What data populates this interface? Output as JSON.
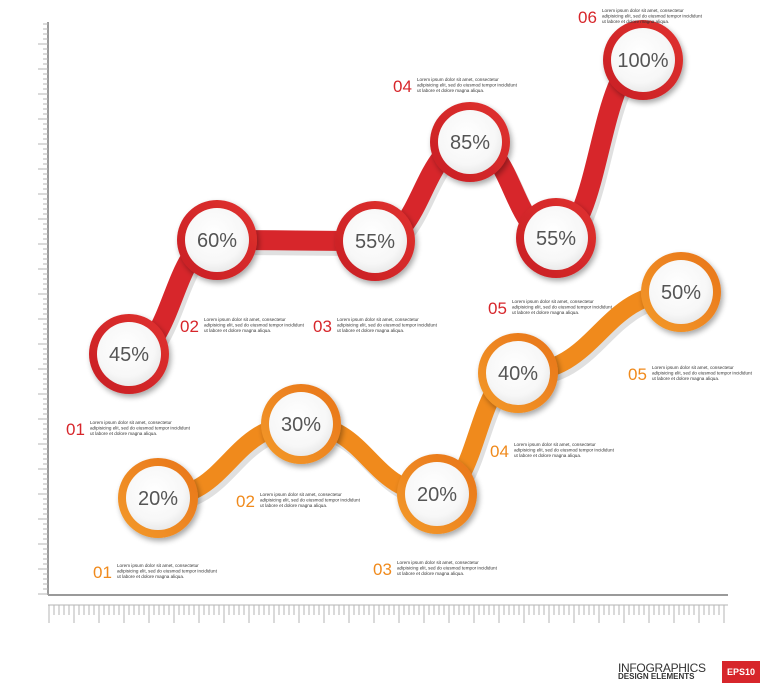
{
  "chart_data": [
    {
      "type": "line",
      "color": "#d7262b",
      "points": [
        {
          "step": "01",
          "value": "45%",
          "note": [
            "Lorem ipsum dolor sit amet, consectetur",
            "adipisicing elit, sed do eiusmod tempor incididunt",
            "ut labore et dolore magna aliqua."
          ]
        },
        {
          "step": "02",
          "value": "60%",
          "note": [
            "Lorem ipsum dolor sit amet, consectetur",
            "adipisicing elit, sed do eiusmod tempor incididunt",
            "ut labore et dolore magna aliqua."
          ]
        },
        {
          "step": "03",
          "value": "55%",
          "note": [
            "Lorem ipsum dolor sit amet, consectetur",
            "adipisicing elit, sed do eiusmod tempor incididunt",
            "ut labore et dolore magna aliqua."
          ]
        },
        {
          "step": "04",
          "value": "85%",
          "note": [
            "Lorem ipsum dolor sit amet, consectetur",
            "adipisicing elit, sed do eiusmod tempor incididunt",
            "ut labore et dolore magna aliqua."
          ]
        },
        {
          "step": "05",
          "value": "55%",
          "note": [
            "Lorem ipsum dolor sit amet, consectetur",
            "adipisicing elit, sed do eiusmod tempor incididunt",
            "ut labore et dolore magna aliqua."
          ]
        },
        {
          "step": "06",
          "value": "100%",
          "note": [
            "Lorem ipsum dolor sit amet, consectetur",
            "adipisicing elit, sed do eiusmod tempor incididunt",
            "ut labore et dolore magna aliqua."
          ]
        }
      ]
    },
    {
      "type": "line",
      "color": "#f08a1c",
      "points": [
        {
          "step": "01",
          "value": "20%",
          "note": [
            "Lorem ipsum dolor sit amet, consectetur",
            "adipisicing elit, sed do eiusmod tempor incididunt",
            "ut labore et dolore magna aliqua."
          ]
        },
        {
          "step": "02",
          "value": "30%",
          "note": [
            "Lorem ipsum dolor sit amet, consectetur",
            "adipisicing elit, sed do eiusmod tempor incididunt",
            "ut labore et dolore magna aliqua."
          ]
        },
        {
          "step": "03",
          "value": "20%",
          "note": [
            "Lorem ipsum dolor sit amet, consectetur",
            "adipisicing elit, sed do eiusmod tempor incididunt",
            "ut labore et dolore magna aliqua."
          ]
        },
        {
          "step": "04",
          "value": "40%",
          "note": [
            "Lorem ipsum dolor sit amet, consectetur",
            "adipisicing elit, sed do eiusmod tempor incididunt",
            "ut labore et dolore magna aliqua."
          ]
        },
        {
          "step": "05",
          "value": "50%",
          "note": [
            "Lorem ipsum dolor sit amet, consectetur",
            "adipisicing elit, sed do eiusmod tempor incididunt",
            "ut labore et dolore magna aliqua."
          ]
        }
      ]
    }
  ],
  "branding": {
    "line1": "INFOGRAPHICS",
    "line2": "DESIGN ELEMENTS",
    "badge": "EPS10"
  },
  "colors": {
    "red": "#d7262b",
    "orange": "#f08a1c",
    "axis": "#9a9a9a",
    "bubble_text": "#555555"
  }
}
